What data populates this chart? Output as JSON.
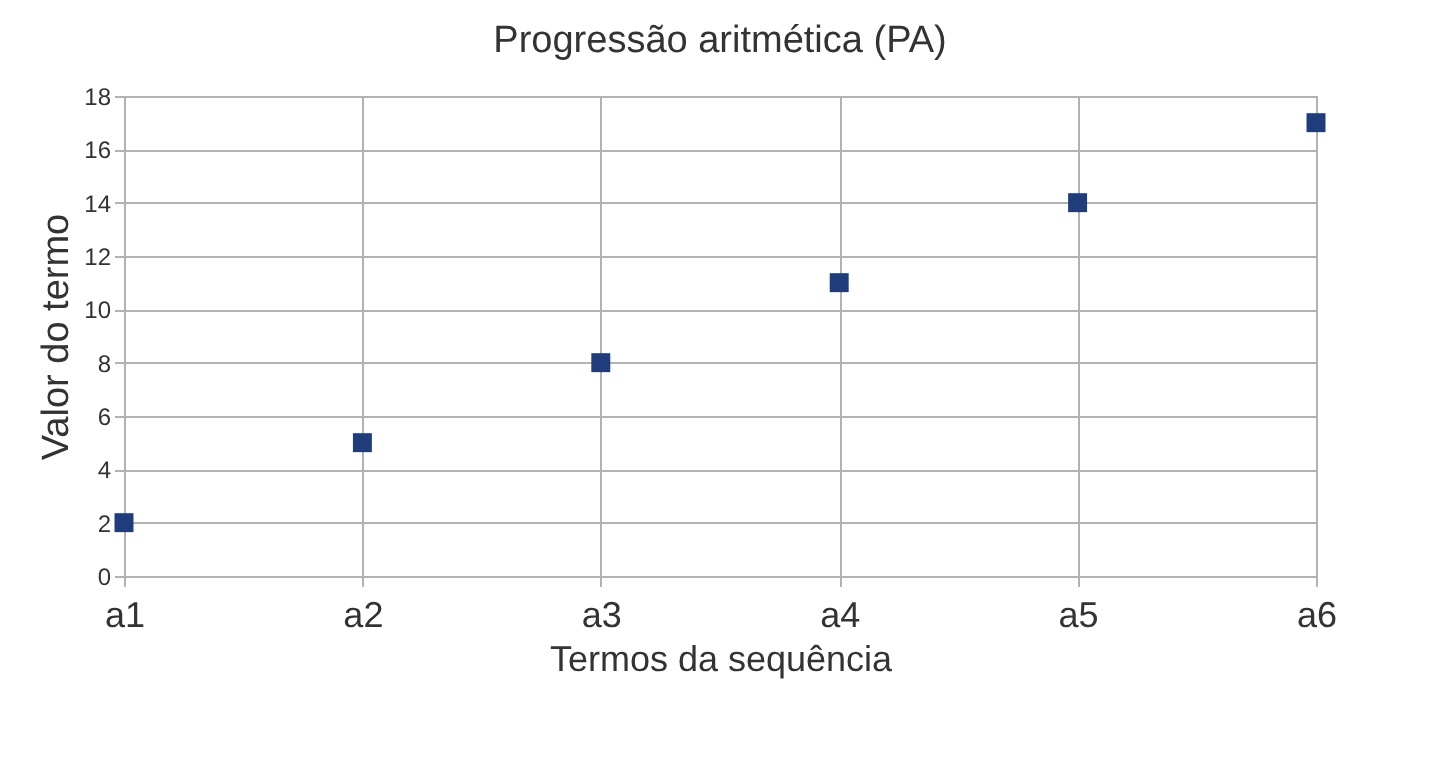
{
  "chart_data": {
    "type": "scatter",
    "title": "Progressão aritmética (PA)",
    "xlabel": "Termos da sequência",
    "ylabel": "Valor do termo",
    "categories": [
      "a1",
      "a2",
      "a3",
      "a4",
      "a5",
      "a6"
    ],
    "values": [
      2,
      5,
      8,
      11,
      14,
      17
    ],
    "color": "#1f3d7a",
    "marker": "square",
    "ylim": [
      0,
      18
    ],
    "yticks": [
      0,
      2,
      4,
      6,
      8,
      10,
      12,
      14,
      16,
      18
    ],
    "grid": true
  }
}
